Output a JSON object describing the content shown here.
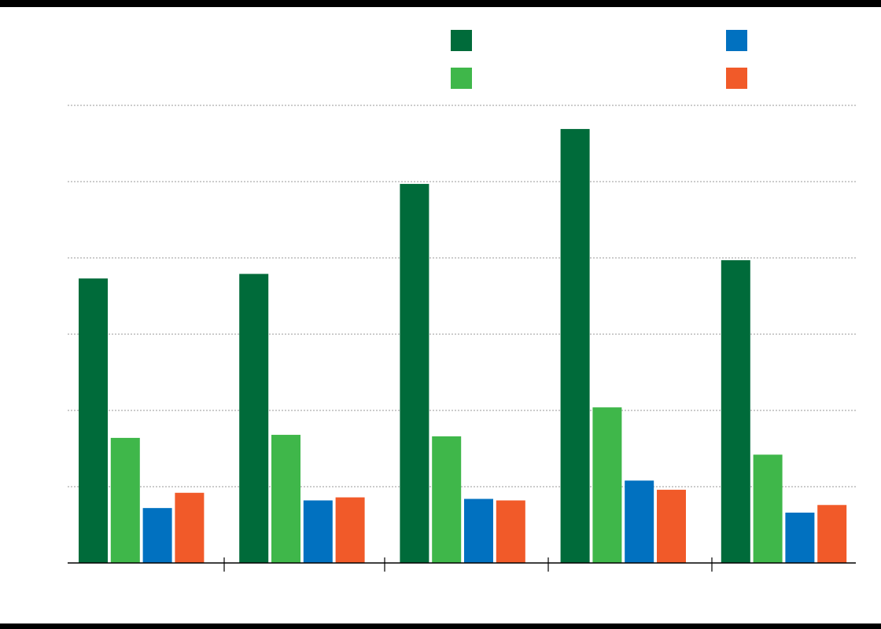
{
  "chart_data": {
    "type": "bar",
    "title": "",
    "xlabel": "",
    "ylabel": "",
    "categories": [
      "",
      "",
      "",
      "",
      ""
    ],
    "ylim": [
      0,
      6
    ],
    "grid": true,
    "legend_position": "top-right",
    "series": [
      {
        "color": "#006b3a",
        "values": [
          3.73,
          3.79,
          4.97,
          5.69,
          3.97
        ]
      },
      {
        "color": "#3fb74a",
        "values": [
          1.64,
          1.68,
          1.66,
          2.04,
          1.42
        ]
      },
      {
        "color": "#0171c0",
        "values": [
          0.72,
          0.82,
          0.84,
          1.08,
          0.66
        ]
      },
      {
        "color": "#f15a29",
        "values": [
          0.92,
          0.86,
          0.82,
          0.96,
          0.76
        ]
      }
    ]
  }
}
